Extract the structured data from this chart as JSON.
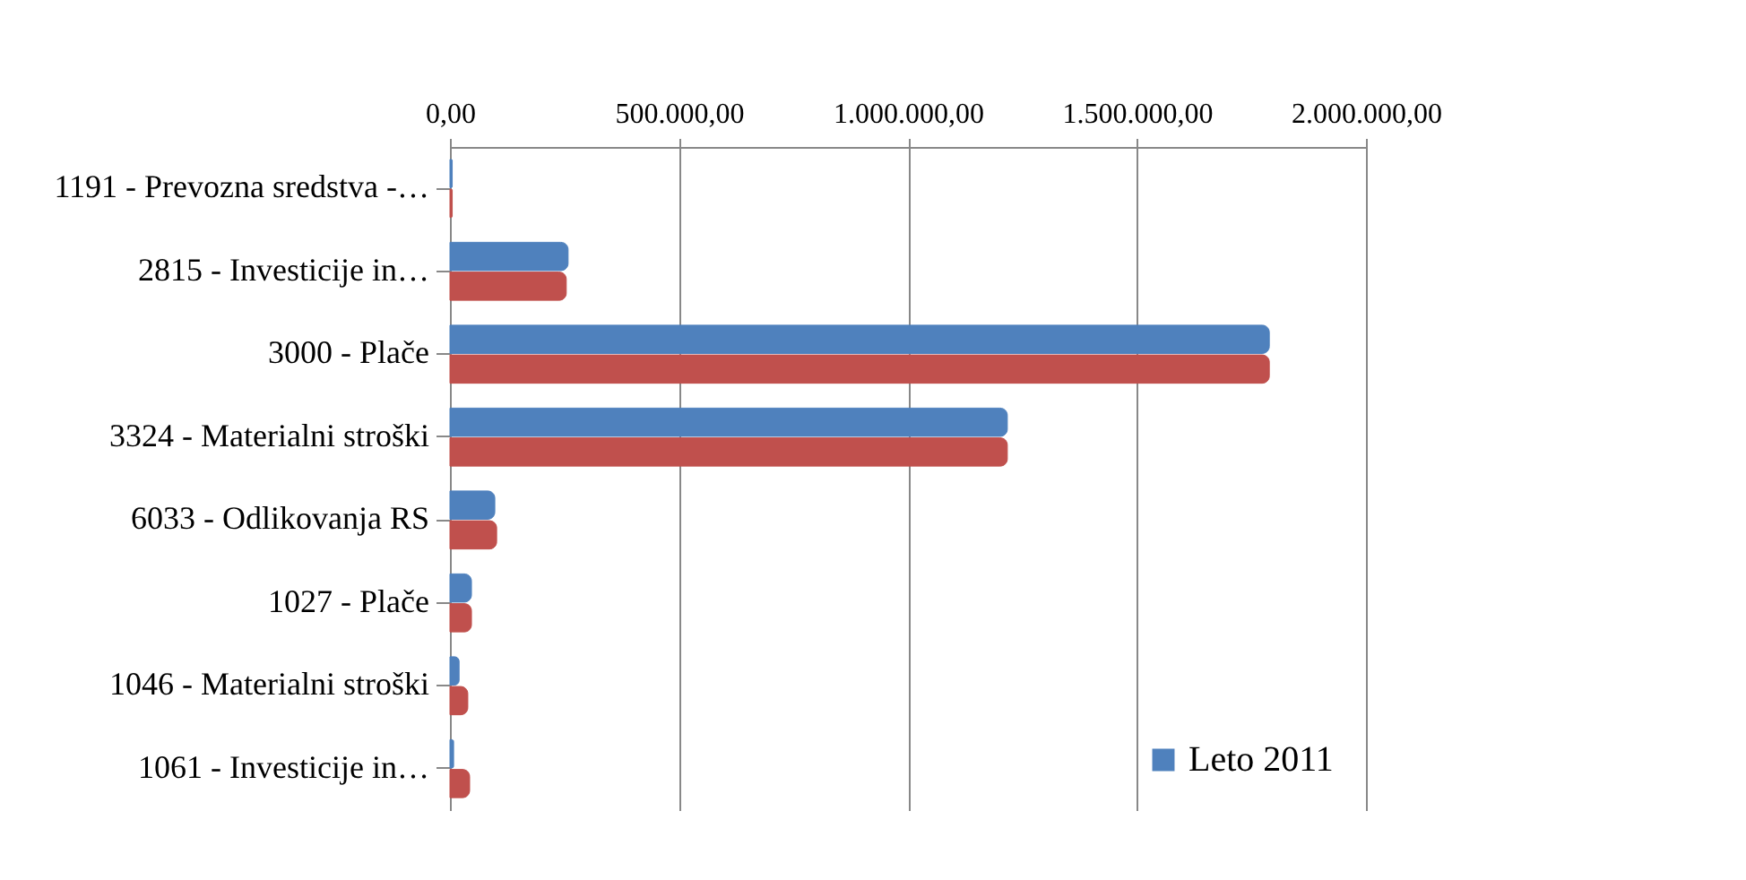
{
  "chart_data": {
    "type": "bar",
    "orientation": "horizontal",
    "categories": [
      "1191 - Prevozna sredstva  -…",
      "2815 - Investicije in…",
      "3000 - Plače",
      "3324 - Materialni stroški",
      "6033 - Odlikovanja RS",
      "1027 - Plače",
      "1046 - Materialni stroški",
      "1061 - Investicije in…"
    ],
    "series": [
      {
        "name": "Leto 2011",
        "color": "#4f81bd",
        "values": [
          5000,
          258000,
          1789000,
          1217000,
          98000,
          47000,
          20000,
          8000
        ]
      },
      {
        "color": "#c0504d",
        "values": [
          5000,
          254000,
          1789000,
          1217000,
          102000,
          47000,
          39000,
          43000
        ]
      }
    ],
    "xlim": [
      0,
      2000000
    ],
    "xticks": [
      {
        "value": 0,
        "label": "0,00"
      },
      {
        "value": 500000,
        "label": "500.000,00"
      },
      {
        "value": 1000000,
        "label": "1.000.000,00"
      },
      {
        "value": 1500000,
        "label": "1.500.000,00"
      },
      {
        "value": 2000000,
        "label": "2.000.000,00"
      }
    ],
    "grid": "x",
    "legend": "bottom right"
  }
}
